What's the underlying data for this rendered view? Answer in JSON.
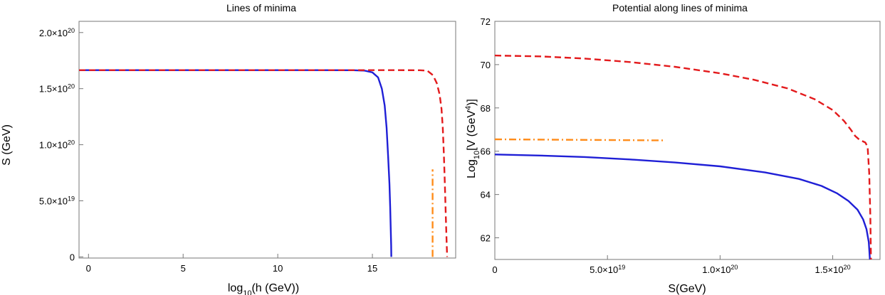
{
  "chart_data": [
    {
      "type": "line",
      "title": "Lines of minima",
      "xlabel": "log10(h (GeV))",
      "ylabel": "S (GeV)",
      "xlim": [
        -0.5,
        19.4
      ],
      "ylim": [
        -1e+18,
        2.1e+20
      ],
      "xticks": [
        {
          "value": 0,
          "label": "0"
        },
        {
          "value": 5,
          "label": "5"
        },
        {
          "value": 10,
          "label": "10"
        },
        {
          "value": 15,
          "label": "15"
        }
      ],
      "yticks": [
        {
          "value": 0,
          "label": "0",
          "exp": ""
        },
        {
          "value": 5e+19,
          "label": "5.0×10",
          "exp": "19"
        },
        {
          "value": 1e+20,
          "label": "1.0×10",
          "exp": "20"
        },
        {
          "value": 1.5e+20,
          "label": "1.5×10",
          "exp": "20"
        },
        {
          "value": 2e+20,
          "label": "2.0×10",
          "exp": "20"
        }
      ],
      "series": [
        {
          "color": "#1f1fd6",
          "dash": "solid",
          "x": [
            -0.5,
            2,
            5,
            8,
            10,
            12,
            14,
            14.6,
            15.0,
            15.3,
            15.5,
            15.65,
            15.75,
            15.83,
            15.9,
            15.94,
            15.97,
            15.99,
            16.0
          ],
          "y": [
            1.665e+20,
            1.665e+20,
            1.665e+20,
            1.665e+20,
            1.665e+20,
            1.665e+20,
            1.664e+20,
            1.66e+20,
            1.645e+20,
            1.6e+20,
            1.5e+20,
            1.35e+20,
            1.15e+20,
            9e+19,
            6.5e+19,
            4.5e+19,
            2.5e+19,
            1e+19,
            0
          ]
        },
        {
          "color": "#e31a1c",
          "dash": "dashed",
          "x": [
            -0.5,
            2,
            5,
            8,
            10,
            12,
            14,
            16,
            17.5,
            17.9,
            18.2,
            18.4,
            18.55,
            18.65,
            18.72,
            18.78,
            18.83,
            18.88,
            18.92,
            18.95
          ],
          "y": [
            1.665e+20,
            1.665e+20,
            1.665e+20,
            1.665e+20,
            1.665e+20,
            1.665e+20,
            1.665e+20,
            1.665e+20,
            1.664e+20,
            1.66e+20,
            1.62e+20,
            1.55e+20,
            1.45e+20,
            1.32e+20,
            1.15e+20,
            9e+19,
            6.5e+19,
            3.5e+19,
            1.5e+19,
            0
          ]
        },
        {
          "color": "#ff8c1a",
          "dash": "dashdot",
          "x": [
            18.18,
            18.18
          ],
          "y": [
            0,
            7.8e+19
          ]
        }
      ]
    },
    {
      "type": "line",
      "title": "Potential  along lines  of minima",
      "xlabel": "S(GeV)",
      "ylabel": "Log10[V (GeV4)]",
      "xlim": [
        0,
        1.71e+20
      ],
      "ylim": [
        61.0,
        72.0
      ],
      "xticks": [
        {
          "value": 0,
          "label": "0",
          "exp": ""
        },
        {
          "value": 5e+19,
          "label": "5.0×10",
          "exp": "19"
        },
        {
          "value": 1e+20,
          "label": "1.0×10",
          "exp": "20"
        },
        {
          "value": 1.5e+20,
          "label": "1.5×10",
          "exp": "20"
        }
      ],
      "yticks": [
        {
          "value": 62,
          "label": "62"
        },
        {
          "value": 64,
          "label": "64"
        },
        {
          "value": 66,
          "label": "66"
        },
        {
          "value": 68,
          "label": "68"
        },
        {
          "value": 70,
          "label": "70"
        },
        {
          "value": 72,
          "label": "72"
        }
      ],
      "series": [
        {
          "color": "#1f1fd6",
          "dash": "solid",
          "x": [
            0,
            2e+19,
            4e+19,
            6e+19,
            8e+19,
            1e+20,
            1.2e+20,
            1.35e+20,
            1.45e+20,
            1.52e+20,
            1.57e+20,
            1.61e+20,
            1.635e+20,
            1.65e+20,
            1.66e+20,
            1.665e+20
          ],
          "y": [
            65.85,
            65.8,
            65.73,
            65.62,
            65.48,
            65.3,
            65.02,
            64.72,
            64.4,
            64.05,
            63.7,
            63.3,
            62.85,
            62.4,
            61.8,
            61.0
          ]
        },
        {
          "color": "#e31a1c",
          "dash": "dashed",
          "x": [
            0,
            2e+19,
            4e+19,
            6e+19,
            8e+19,
            1e+20,
            1.15e+20,
            1.3e+20,
            1.42e+20,
            1.5e+20,
            1.55e+20,
            1.58e+20,
            1.6e+20,
            1.62e+20,
            1.635e+20,
            1.645e+20,
            1.655e+20,
            1.662e+20,
            1.667e+20,
            1.67e+20
          ],
          "y": [
            70.42,
            70.38,
            70.28,
            70.12,
            69.9,
            69.6,
            69.3,
            68.9,
            68.4,
            67.9,
            67.4,
            67.0,
            66.7,
            66.52,
            66.45,
            66.4,
            66.2,
            65.0,
            63.0,
            61.0
          ]
        },
        {
          "color": "#ff8c1a",
          "dash": "dashdot",
          "x": [
            0,
            7.5e+19
          ],
          "y": [
            66.55,
            66.5
          ]
        }
      ]
    }
  ]
}
